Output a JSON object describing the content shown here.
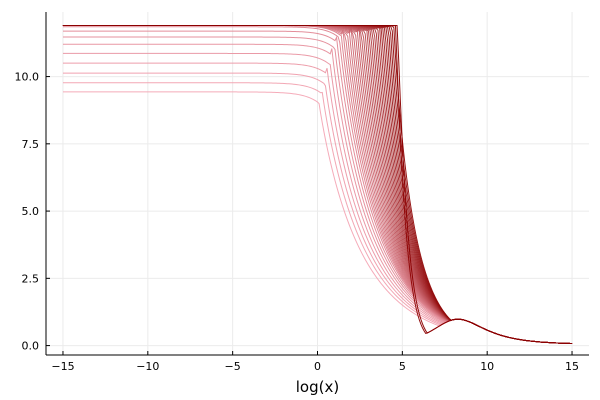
{
  "chart_data": {
    "type": "line",
    "title": "",
    "xlabel": "log(x)",
    "ylabel": "",
    "xlim": [
      -16,
      16
    ],
    "ylim": [
      -0.35,
      12.4
    ],
    "xticks": [
      -15,
      -10,
      -5,
      0,
      5,
      10,
      15
    ],
    "xtick_labels": [
      "−15",
      "−10",
      "−5",
      "0",
      "5",
      "10",
      "15"
    ],
    "yticks": [
      0,
      2.5,
      5,
      7.5,
      10
    ],
    "ytick_labels": [
      "0.0",
      "2.5",
      "5.0",
      "7.5",
      "10.0"
    ],
    "grid": true,
    "legend": "none",
    "colors": {
      "light": "#f4a6b5",
      "dark": "#8b0000",
      "grid": "#ebebeb",
      "axis": "#000000"
    },
    "x_range": [
      -15,
      15
    ],
    "curve_family": {
      "count": 40,
      "plateaus_visible": [
        9.43,
        9.77,
        10.13,
        10.5,
        10.86,
        11.2,
        11.47,
        11.69,
        11.85,
        11.9
      ],
      "plateau_max": 11.9,
      "drop_start_x": [
        0.0,
        4.7
      ],
      "tail_value_at_15": 0.05
    }
  }
}
